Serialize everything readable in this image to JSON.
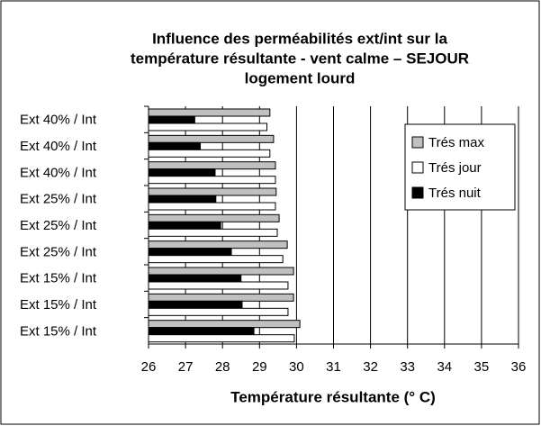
{
  "chart_data": {
    "type": "hbar",
    "title": [
      "Influence des perméabilités ext/int sur la",
      "température résultante - vent calme – SEJOUR",
      "logement lourd"
    ],
    "x_label": "Température résultante (° C)",
    "categories": [
      "Ext 40% / Int",
      "Ext 40% / Int",
      "Ext 40% / Int",
      "Ext 25% / Int",
      "Ext 25% / Int",
      "Ext 25% / Int",
      "Ext 15% / Int",
      "Ext 15% / Int",
      "Ext 15% / Int"
    ],
    "series": [
      {
        "name": "Trés max",
        "color": "#c0c0c0",
        "values": [
          29.28,
          29.38,
          29.43,
          29.45,
          29.53,
          29.75,
          29.92,
          29.92,
          30.09
        ]
      },
      {
        "name": "Trés nuit",
        "color": "#000000",
        "values": [
          27.25,
          27.4,
          27.8,
          27.82,
          27.95,
          28.24,
          28.5,
          28.53,
          28.85
        ]
      },
      {
        "name": "Trés jour",
        "color": "#ffffff",
        "values": [
          29.2,
          29.28,
          29.43,
          29.43,
          29.48,
          29.63,
          29.77,
          29.77,
          29.94
        ]
      }
    ],
    "legend_order": [
      0,
      2,
      1
    ],
    "legend": "upper right",
    "xlim": [
      26,
      36
    ],
    "xticks": [
      26,
      27,
      28,
      29,
      30,
      31,
      32,
      33,
      34,
      35,
      36
    ],
    "grid": true
  }
}
